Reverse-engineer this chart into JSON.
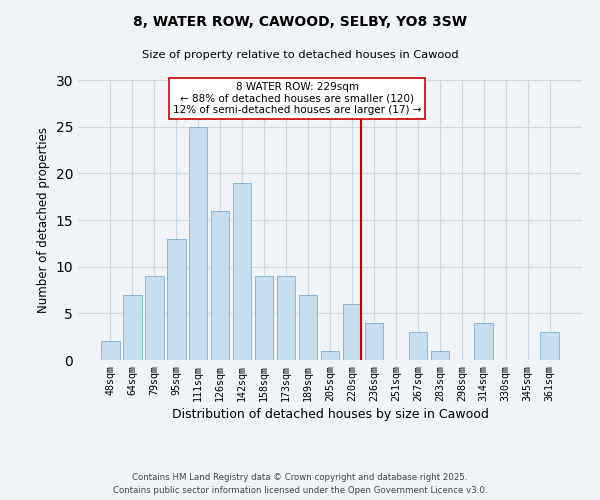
{
  "title": "8, WATER ROW, CAWOOD, SELBY, YO8 3SW",
  "subtitle": "Size of property relative to detached houses in Cawood",
  "xlabel": "Distribution of detached houses by size in Cawood",
  "ylabel": "Number of detached properties",
  "bar_labels": [
    "48sqm",
    "64sqm",
    "79sqm",
    "95sqm",
    "111sqm",
    "126sqm",
    "142sqm",
    "158sqm",
    "173sqm",
    "189sqm",
    "205sqm",
    "220sqm",
    "236sqm",
    "251sqm",
    "267sqm",
    "283sqm",
    "298sqm",
    "314sqm",
    "330sqm",
    "345sqm",
    "361sqm"
  ],
  "bar_values": [
    2,
    7,
    9,
    13,
    25,
    16,
    19,
    9,
    9,
    7,
    1,
    6,
    4,
    0,
    3,
    1,
    0,
    4,
    0,
    0,
    3
  ],
  "bar_color": "#c5ddef",
  "bar_edge_color": "#8ab8d4",
  "grid_color": "#d0d8e0",
  "vline_x": 11.42,
  "vline_color": "#cc0000",
  "annotation_text": "8 WATER ROW: 229sqm\n← 88% of detached houses are smaller (120)\n12% of semi-detached houses are larger (17) →",
  "annotation_box_color": "#ffffff",
  "annotation_box_edge": "#cc0000",
  "ylim": [
    0,
    30
  ],
  "yticks": [
    0,
    5,
    10,
    15,
    20,
    25,
    30
  ],
  "footer_line1": "Contains HM Land Registry data © Crown copyright and database right 2025.",
  "footer_line2": "Contains public sector information licensed under the Open Government Licence v3.0.",
  "bg_color": "#f0f4f8"
}
